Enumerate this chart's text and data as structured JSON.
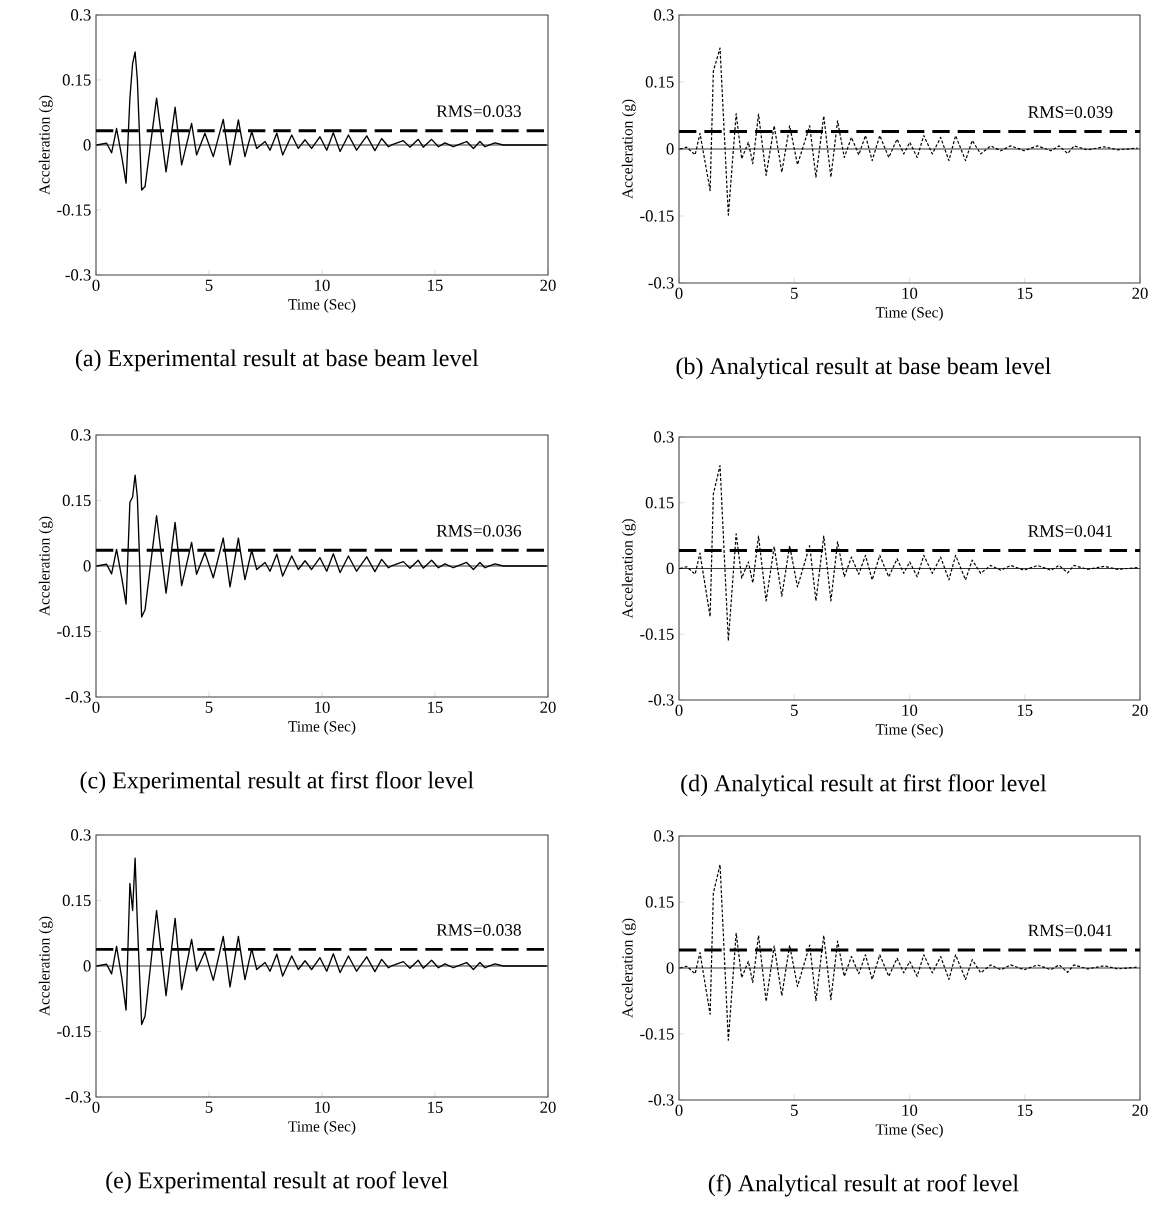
{
  "chart_data": [
    {
      "type": "line",
      "title": "(a) Experimental result at base beam level",
      "xlabel": "Time (Sec)",
      "ylabel": "Acceleration (g)",
      "xlim": [
        0,
        20
      ],
      "xticks": [
        0,
        5,
        10,
        15,
        20
      ],
      "ylim": [
        -0.3,
        0.3
      ],
      "yticks": [
        -0.3,
        -0.15,
        0,
        0.15,
        0.3
      ],
      "grid": false,
      "marker": "none",
      "series": [
        {
          "color": "#000000",
          "line_style": "solid",
          "x": [
            0.03,
            0.47,
            0.69,
            0.91,
            1.14,
            1.33,
            1.5,
            1.62,
            1.73,
            1.83,
            2.02,
            2.17,
            2.68,
            3.1,
            3.5,
            3.79,
            4.23,
            4.45,
            4.82,
            5.19,
            5.63,
            5.93,
            6.3,
            6.59,
            6.89,
            7.11,
            7.48,
            7.7,
            8.0,
            8.26,
            8.66,
            8.95,
            9.25,
            9.54,
            9.91,
            10.21,
            10.5,
            10.8,
            11.17,
            11.53,
            11.98,
            12.34,
            12.64,
            12.94,
            13.08,
            13.6,
            13.89,
            14.26,
            14.48,
            14.85,
            15.15,
            15.44,
            15.81,
            16.4,
            16.7,
            16.99,
            17.21,
            17.65,
            18.02,
            19.94
          ],
          "values": [
            0,
            0.004,
            -0.018,
            0.038,
            -0.027,
            -0.088,
            0.108,
            0.188,
            0.215,
            0.15,
            -0.104,
            -0.096,
            0.108,
            -0.062,
            0.087,
            -0.046,
            0.05,
            -0.023,
            0.027,
            -0.027,
            0.059,
            -0.046,
            0.058,
            -0.027,
            0.031,
            -0.008,
            0.008,
            -0.012,
            0.027,
            -0.023,
            0.023,
            -0.008,
            0.012,
            -0.008,
            0.019,
            -0.012,
            0.028,
            -0.015,
            0.023,
            -0.012,
            0.021,
            -0.013,
            0.015,
            -0.004,
            0,
            0.01,
            -0.005,
            0.013,
            -0.005,
            0.013,
            -0.004,
            0.005,
            -0.004,
            0.008,
            -0.008,
            0.008,
            -0.004,
            0.005,
            0,
            0
          ]
        }
      ],
      "ref_lines": [
        {
          "axis": "y",
          "value": 0,
          "color": "#000000",
          "line_style": "solid"
        },
        {
          "axis": "y",
          "value": 0.033,
          "label": "RMS=0.033",
          "color": "#000000",
          "line_style": "dashed"
        }
      ]
    },
    {
      "type": "line",
      "title": "(b) Analytical result at base beam level",
      "xlabel": "Time (Sec)",
      "ylabel": "Acceleration (g)",
      "xlim": [
        0,
        20
      ],
      "xticks": [
        0,
        5,
        10,
        15,
        20
      ],
      "ylim": [
        -0.3,
        0.3
      ],
      "yticks": [
        -0.3,
        -0.15,
        0,
        0.15,
        0.3
      ],
      "grid": false,
      "marker": "none",
      "series": [
        {
          "color": "#000000",
          "line_style": "dashed",
          "x": [
            0.04,
            0.33,
            0.7,
            0.91,
            1.35,
            1.49,
            1.78,
            2.14,
            2.48,
            2.72,
            3.01,
            3.2,
            3.45,
            3.78,
            4.13,
            4.46,
            4.8,
            5.14,
            5.67,
            5.94,
            6.28,
            6.59,
            6.88,
            7.17,
            7.48,
            7.8,
            8.09,
            8.38,
            8.71,
            9.1,
            9.46,
            9.75,
            10.01,
            10.33,
            10.62,
            10.99,
            11.35,
            11.71,
            12.0,
            12.43,
            12.72,
            13.09,
            13.52,
            13.96,
            14.39,
            14.97,
            15.55,
            16.13,
            16.49,
            16.86,
            17.14,
            17.72,
            18.45,
            19.03,
            19.9
          ],
          "values": [
            0,
            0.004,
            -0.013,
            0.035,
            -0.093,
            0.174,
            0.226,
            -0.148,
            0.079,
            -0.022,
            0.015,
            -0.033,
            0.078,
            -0.059,
            0.052,
            -0.052,
            0.052,
            -0.035,
            0.052,
            -0.063,
            0.074,
            -0.063,
            0.063,
            -0.019,
            0.026,
            -0.013,
            0.03,
            -0.026,
            0.03,
            -0.019,
            0.022,
            -0.011,
            0.015,
            -0.019,
            0.03,
            -0.011,
            0.026,
            -0.026,
            0.03,
            -0.026,
            0.019,
            -0.011,
            0.007,
            -0.004,
            0.007,
            -0.004,
            0.007,
            -0.004,
            0.007,
            -0.01,
            0.007,
            -0.002,
            0.005,
            -0.002,
            0.002
          ]
        }
      ],
      "ref_lines": [
        {
          "axis": "y",
          "value": 0,
          "color": "#000000",
          "line_style": "solid"
        },
        {
          "axis": "y",
          "value": 0.039,
          "label": "RMS=0.039",
          "color": "#000000",
          "line_style": "dashed"
        }
      ]
    },
    {
      "type": "line",
      "title": "(c) Experimental result at first floor level",
      "xlabel": "Time (Sec)",
      "ylabel": "Acceleration (g)",
      "xlim": [
        0,
        20
      ],
      "xticks": [
        0,
        5,
        10,
        15,
        20
      ],
      "ylim": [
        -0.3,
        0.3
      ],
      "yticks": [
        -0.3,
        -0.15,
        0,
        0.15,
        0.3
      ],
      "grid": false,
      "marker": "none",
      "series": [
        {
          "color": "#000000",
          "line_style": "solid",
          "x": [
            0.03,
            0.47,
            0.69,
            0.91,
            1.14,
            1.33,
            1.5,
            1.62,
            1.73,
            1.83,
            2.02,
            2.17,
            2.68,
            3.1,
            3.5,
            3.79,
            4.23,
            4.45,
            4.82,
            5.19,
            5.63,
            5.93,
            6.3,
            6.59,
            6.89,
            7.11,
            7.48,
            7.7,
            8.0,
            8.26,
            8.66,
            8.95,
            9.25,
            9.54,
            9.91,
            10.21,
            10.5,
            10.8,
            11.17,
            11.53,
            11.98,
            12.34,
            12.64,
            12.94,
            13.08,
            13.6,
            13.89,
            14.26,
            14.48,
            14.85,
            15.15,
            15.44,
            15.81,
            16.4,
            16.7,
            16.99,
            17.21,
            17.65,
            18.02,
            19.94
          ],
          "values": [
            0,
            0.004,
            -0.018,
            0.038,
            -0.027,
            -0.087,
            0.146,
            0.158,
            0.208,
            0.158,
            -0.117,
            -0.1,
            0.115,
            -0.062,
            0.1,
            -0.045,
            0.054,
            -0.019,
            0.031,
            -0.027,
            0.064,
            -0.048,
            0.064,
            -0.031,
            0.036,
            -0.008,
            0.008,
            -0.012,
            0.027,
            -0.023,
            0.023,
            -0.008,
            0.012,
            -0.008,
            0.019,
            -0.012,
            0.028,
            -0.015,
            0.023,
            -0.012,
            0.021,
            -0.013,
            0.015,
            -0.004,
            0,
            0.01,
            -0.005,
            0.013,
            -0.005,
            0.013,
            -0.004,
            0.005,
            -0.004,
            0.008,
            -0.008,
            0.008,
            -0.004,
            0.005,
            0,
            0
          ]
        }
      ],
      "ref_lines": [
        {
          "axis": "y",
          "value": 0,
          "color": "#000000",
          "line_style": "solid"
        },
        {
          "axis": "y",
          "value": 0.036,
          "label": "RMS=0.036",
          "color": "#000000",
          "line_style": "dashed"
        }
      ]
    },
    {
      "type": "line",
      "title": "(d) Analytical result at first floor level",
      "xlabel": "Time (Sec)",
      "ylabel": "Acceleration (g)",
      "xlim": [
        0,
        20
      ],
      "xticks": [
        0,
        5,
        10,
        15,
        20
      ],
      "ylim": [
        -0.3,
        0.3
      ],
      "yticks": [
        -0.3,
        -0.15,
        0,
        0.15,
        0.3
      ],
      "grid": false,
      "marker": "none",
      "series": [
        {
          "color": "#000000",
          "line_style": "dashed",
          "x": [
            0.04,
            0.33,
            0.7,
            0.91,
            1.35,
            1.49,
            1.78,
            2.14,
            2.48,
            2.72,
            3.01,
            3.2,
            3.45,
            3.78,
            4.13,
            4.46,
            4.8,
            5.14,
            5.67,
            5.94,
            6.28,
            6.59,
            6.88,
            7.17,
            7.48,
            7.8,
            8.09,
            8.38,
            8.71,
            9.1,
            9.46,
            9.75,
            10.01,
            10.33,
            10.62,
            10.99,
            11.35,
            11.71,
            12.0,
            12.43,
            12.72,
            13.09,
            13.52,
            13.96,
            14.39,
            14.97,
            15.55,
            16.13,
            16.49,
            16.86,
            17.14,
            17.72,
            18.45,
            19.03,
            19.9
          ],
          "values": [
            0,
            0.004,
            -0.013,
            0.035,
            -0.11,
            0.17,
            0.235,
            -0.165,
            0.079,
            -0.022,
            0.015,
            -0.033,
            0.074,
            -0.074,
            0.05,
            -0.063,
            0.052,
            -0.042,
            0.052,
            -0.074,
            0.074,
            -0.074,
            0.061,
            -0.019,
            0.026,
            -0.013,
            0.03,
            -0.026,
            0.03,
            -0.019,
            0.022,
            -0.011,
            0.015,
            -0.019,
            0.03,
            -0.011,
            0.026,
            -0.026,
            0.03,
            -0.026,
            0.019,
            -0.011,
            0.007,
            -0.004,
            0.007,
            -0.004,
            0.007,
            -0.004,
            0.007,
            -0.01,
            0.007,
            -0.002,
            0.005,
            -0.002,
            0.002
          ]
        }
      ],
      "ref_lines": [
        {
          "axis": "y",
          "value": 0,
          "color": "#000000",
          "line_style": "solid"
        },
        {
          "axis": "y",
          "value": 0.041,
          "label": "RMS=0.041",
          "color": "#000000",
          "line_style": "dashed"
        }
      ]
    },
    {
      "type": "line",
      "title": "(e) Experimental result at roof level",
      "xlabel": "Time (Sec)",
      "ylabel": "Acceleration (g)",
      "xlim": [
        0,
        20
      ],
      "xticks": [
        0,
        5,
        10,
        15,
        20
      ],
      "ylim": [
        -0.3,
        0.3
      ],
      "yticks": [
        -0.3,
        -0.15,
        0,
        0.15,
        0.3
      ],
      "grid": false,
      "marker": "none",
      "series": [
        {
          "color": "#000000",
          "line_style": "solid",
          "x": [
            0.03,
            0.47,
            0.69,
            0.91,
            1.14,
            1.33,
            1.5,
            1.62,
            1.73,
            1.83,
            2.02,
            2.17,
            2.68,
            3.1,
            3.5,
            3.79,
            4.23,
            4.45,
            4.82,
            5.19,
            5.63,
            5.93,
            6.3,
            6.59,
            6.89,
            7.11,
            7.48,
            7.7,
            8.0,
            8.26,
            8.66,
            8.95,
            9.25,
            9.54,
            9.91,
            10.21,
            10.5,
            10.8,
            11.17,
            11.53,
            11.98,
            12.34,
            12.64,
            12.94,
            13.08,
            13.6,
            13.89,
            14.26,
            14.48,
            14.85,
            15.15,
            15.44,
            15.81,
            16.4,
            16.7,
            16.99,
            17.21,
            17.65,
            18.02,
            19.94
          ],
          "values": [
            0,
            0.004,
            -0.018,
            0.045,
            -0.027,
            -0.101,
            0.189,
            0.127,
            0.247,
            0.099,
            -0.134,
            -0.115,
            0.127,
            -0.068,
            0.109,
            -0.054,
            0.061,
            -0.011,
            0.033,
            -0.033,
            0.068,
            -0.048,
            0.068,
            -0.031,
            0.039,
            -0.008,
            0.008,
            -0.012,
            0.027,
            -0.023,
            0.023,
            -0.008,
            0.012,
            -0.008,
            0.019,
            -0.012,
            0.028,
            -0.015,
            0.023,
            -0.012,
            0.021,
            -0.013,
            0.015,
            -0.004,
            0,
            0.01,
            -0.005,
            0.013,
            -0.005,
            0.013,
            -0.004,
            0.005,
            -0.004,
            0.008,
            -0.008,
            0.008,
            -0.004,
            0.005,
            0,
            0
          ]
        }
      ],
      "ref_lines": [
        {
          "axis": "y",
          "value": 0,
          "color": "#000000",
          "line_style": "solid"
        },
        {
          "axis": "y",
          "value": 0.038,
          "label": "RMS=0.038",
          "color": "#000000",
          "line_style": "dashed"
        }
      ]
    },
    {
      "type": "line",
      "title": "(f) Analytical result at roof level",
      "xlabel": "Time (Sec)",
      "ylabel": "Acceleration (g)",
      "xlim": [
        0,
        20
      ],
      "xticks": [
        0,
        5,
        10,
        15,
        20
      ],
      "ylim": [
        -0.3,
        0.3
      ],
      "yticks": [
        -0.3,
        -0.15,
        0,
        0.15,
        0.3
      ],
      "grid": false,
      "marker": "none",
      "series": [
        {
          "color": "#000000",
          "line_style": "dashed",
          "x": [
            0.04,
            0.33,
            0.7,
            0.91,
            1.35,
            1.49,
            1.78,
            2.14,
            2.48,
            2.72,
            3.01,
            3.2,
            3.45,
            3.78,
            4.13,
            4.46,
            4.8,
            5.14,
            5.67,
            5.94,
            6.28,
            6.59,
            6.88,
            7.17,
            7.48,
            7.8,
            8.09,
            8.38,
            8.71,
            9.1,
            9.46,
            9.75,
            10.01,
            10.33,
            10.62,
            10.99,
            11.35,
            11.71,
            12.0,
            12.43,
            12.72,
            13.09,
            13.52,
            13.96,
            14.39,
            14.97,
            15.55,
            16.13,
            16.49,
            16.86,
            17.14,
            17.72,
            18.45,
            19.03,
            19.9
          ],
          "values": [
            0,
            0.004,
            -0.013,
            0.035,
            -0.105,
            0.17,
            0.235,
            -0.164,
            0.079,
            -0.022,
            0.015,
            -0.033,
            0.074,
            -0.076,
            0.05,
            -0.063,
            0.052,
            -0.042,
            0.052,
            -0.074,
            0.074,
            -0.072,
            0.061,
            -0.019,
            0.026,
            -0.013,
            0.03,
            -0.026,
            0.03,
            -0.019,
            0.022,
            -0.011,
            0.015,
            -0.019,
            0.03,
            -0.011,
            0.026,
            -0.026,
            0.03,
            -0.026,
            0.019,
            -0.011,
            0.007,
            -0.004,
            0.007,
            -0.004,
            0.007,
            -0.004,
            0.007,
            -0.01,
            0.007,
            -0.002,
            0.005,
            -0.002,
            0.002
          ]
        }
      ],
      "ref_lines": [
        {
          "axis": "y",
          "value": 0,
          "color": "#000000",
          "line_style": "solid"
        },
        {
          "axis": "y",
          "value": 0.041,
          "label": "RMS=0.041",
          "color": "#000000",
          "line_style": "dashed"
        }
      ]
    }
  ]
}
